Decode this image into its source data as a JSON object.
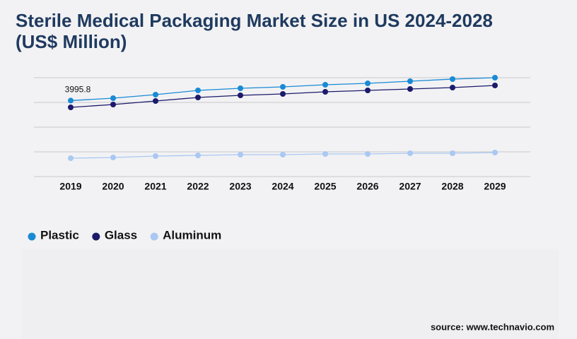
{
  "chart_data": {
    "type": "line",
    "title": "Sterile Medical Packaging Market Size in US 2024-2028 (US$ Million)",
    "source": "source: www.technavio.com",
    "categories": [
      "2019",
      "2020",
      "2021",
      "2022",
      "2023",
      "2024",
      "2025",
      "2026",
      "2027",
      "2028",
      "2029"
    ],
    "series": [
      {
        "name": "Plastic",
        "color": "#1a8ad4",
        "values": [
          3995.8,
          4123,
          4309,
          4531,
          4643,
          4717,
          4829,
          4903,
          5014,
          5126,
          5200
        ]
      },
      {
        "name": "Glass",
        "color": "#1b1a6b",
        "values": [
          3640,
          3789,
          3974,
          4160,
          4271,
          4346,
          4457,
          4531,
          4606,
          4680,
          4791
        ]
      },
      {
        "name": "Aluminum",
        "color": "#a9c8f2",
        "values": [
          966,
          1003,
          1077,
          1114,
          1151,
          1151,
          1189,
          1189,
          1226,
          1226,
          1263
        ]
      }
    ],
    "ylim": [
      0,
      5200
    ],
    "yticks": [
      0,
      1300,
      2600,
      3900,
      5200
    ],
    "grid": true
  }
}
